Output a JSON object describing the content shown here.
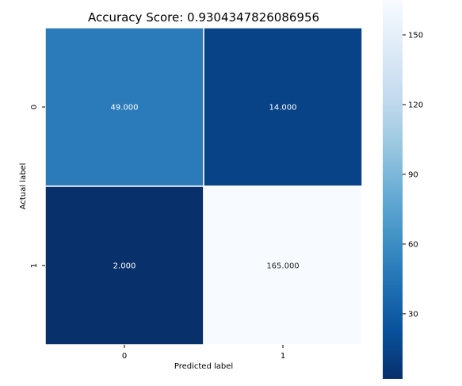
{
  "chart_data": {
    "type": "heatmap",
    "title": "Accuracy Score: 0.9304347826086956",
    "xlabel": "Predicted label",
    "ylabel": "Actual label",
    "x_categories": [
      "0",
      "1"
    ],
    "y_categories": [
      "0",
      "1"
    ],
    "values": [
      [
        49,
        14
      ],
      [
        2,
        165
      ]
    ],
    "value_labels": [
      [
        "49.000",
        "14.000"
      ],
      [
        "2.000",
        "165.000"
      ]
    ],
    "colormap": "Blues_r",
    "vmin": 2,
    "vmax": 165,
    "colorbar_ticks": [
      30,
      60,
      90,
      120,
      150
    ],
    "colorbar_tick_labels": [
      "30",
      "60",
      "90",
      "120",
      "150"
    ]
  }
}
